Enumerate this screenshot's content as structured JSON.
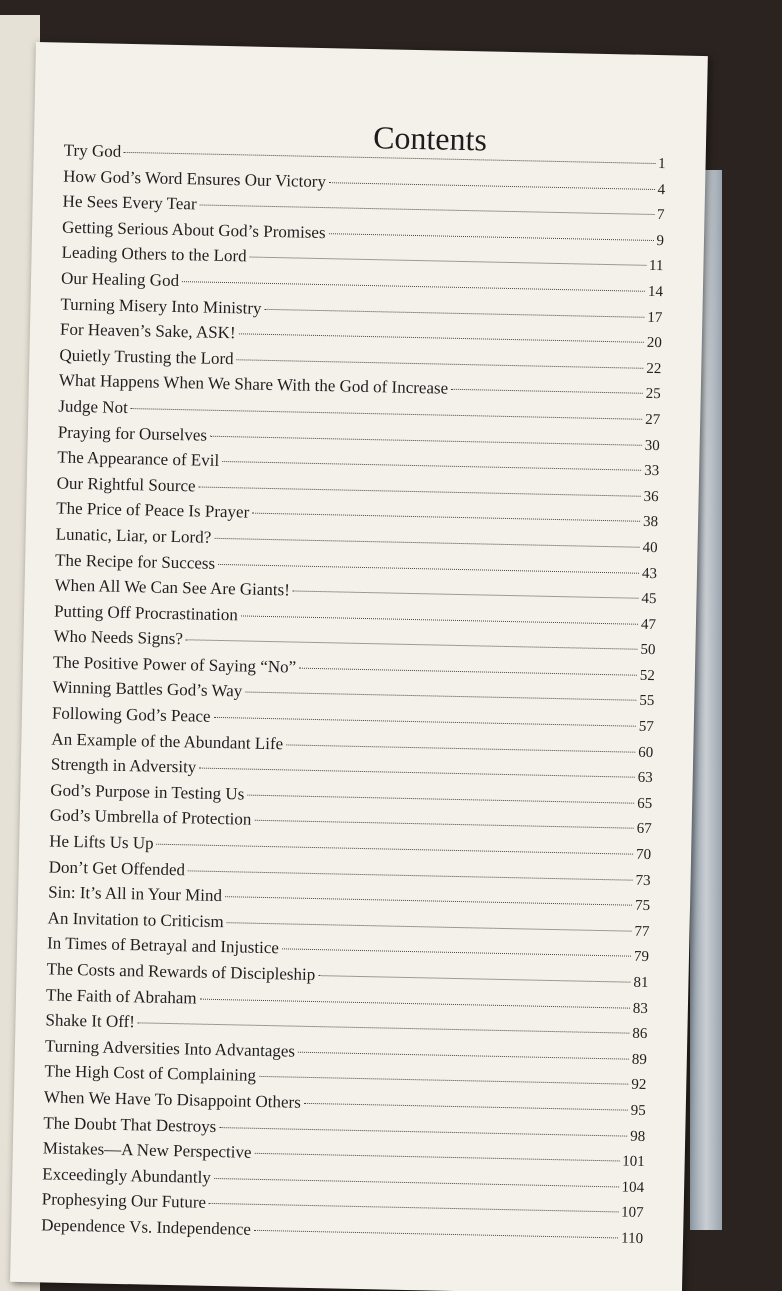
{
  "title": "Contents",
  "entries": [
    {
      "title": "Try God",
      "page": 1
    },
    {
      "title": "How God’s Word Ensures Our Victory",
      "page": 4
    },
    {
      "title": "He Sees Every Tear",
      "page": 7
    },
    {
      "title": "Getting Serious About God’s Promises",
      "page": 9
    },
    {
      "title": "Leading Others to the Lord",
      "page": 11
    },
    {
      "title": "Our Healing God",
      "page": 14
    },
    {
      "title": "Turning Misery Into Ministry",
      "page": 17
    },
    {
      "title": "For Heaven’s Sake, ASK!",
      "page": 20
    },
    {
      "title": "Quietly Trusting the Lord",
      "page": 22
    },
    {
      "title": "What Happens When We Share With the God of Increase",
      "page": 25
    },
    {
      "title": "Judge Not",
      "page": 27
    },
    {
      "title": "Praying for Ourselves",
      "page": 30
    },
    {
      "title": "The Appearance of Evil",
      "page": 33
    },
    {
      "title": "Our Rightful Source",
      "page": 36
    },
    {
      "title": "The Price of Peace Is Prayer",
      "page": 38
    },
    {
      "title": "Lunatic, Liar, or Lord?",
      "page": 40
    },
    {
      "title": "The Recipe for Success",
      "page": 43
    },
    {
      "title": "When All We Can See Are Giants!",
      "page": 45
    },
    {
      "title": "Putting Off Procrastination",
      "page": 47
    },
    {
      "title": "Who Needs Signs?",
      "page": 50
    },
    {
      "title": "The Positive Power of Saying “No”",
      "page": 52
    },
    {
      "title": "Winning Battles God’s Way",
      "page": 55
    },
    {
      "title": "Following God’s Peace",
      "page": 57
    },
    {
      "title": "An Example of the Abundant Life",
      "page": 60
    },
    {
      "title": "Strength in Adversity",
      "page": 63
    },
    {
      "title": "God’s Purpose in Testing Us",
      "page": 65
    },
    {
      "title": "God’s Umbrella of Protection",
      "page": 67
    },
    {
      "title": "He Lifts Us Up",
      "page": 70
    },
    {
      "title": "Don’t Get Offended",
      "page": 73
    },
    {
      "title": "Sin: It’s All in Your Mind",
      "page": 75
    },
    {
      "title": "An Invitation to Criticism",
      "page": 77
    },
    {
      "title": "In Times of Betrayal and Injustice",
      "page": 79
    },
    {
      "title": "The Costs and Rewards of Discipleship",
      "page": 81
    },
    {
      "title": "The Faith of Abraham",
      "page": 83
    },
    {
      "title": "Shake It Off!",
      "page": 86
    },
    {
      "title": "Turning Adversities Into Advantages",
      "page": 89
    },
    {
      "title": "The High Cost of Complaining",
      "page": 92
    },
    {
      "title": "When We Have To Disappoint Others",
      "page": 95
    },
    {
      "title": "The Doubt That Destroys",
      "page": 98
    },
    {
      "title": "Mistakes—A New Perspective",
      "page": 101
    },
    {
      "title": "Exceedingly Abundantly",
      "page": 104
    },
    {
      "title": "Prophesying Our Future",
      "page": 107
    },
    {
      "title": "Dependence Vs. Independence",
      "page": 110
    }
  ]
}
